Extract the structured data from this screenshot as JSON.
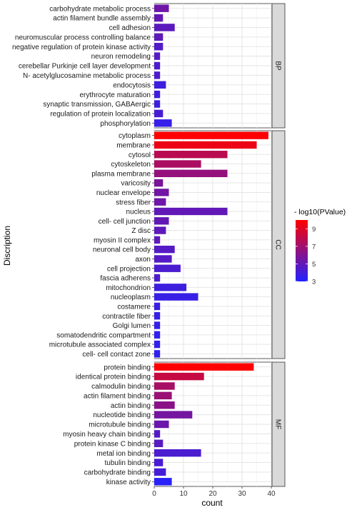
{
  "chart_data": {
    "type": "bar",
    "orientation": "horizontal",
    "xlabel": "count",
    "ylabel": "Discription",
    "xlim": [
      0,
      40
    ],
    "x_ticks": [
      0,
      10,
      20,
      30,
      40
    ],
    "grid": true,
    "legend": {
      "title": "- log10(PValue)",
      "position": "right",
      "ticks": [
        3,
        5,
        7,
        9
      ],
      "range": [
        3,
        10
      ],
      "colors": {
        "low": "#2222ff",
        "high": "#ff0000"
      }
    },
    "facets": [
      {
        "name": "BP",
        "categories": [
          "carbohydrate metabolic process",
          "actin filament bundle assembly",
          "cell adhesion",
          "neuromuscular process controlling balance",
          "negative regulation of protein kinase activity",
          "neuron remodeling",
          "cerebellar Purkinje cell layer development",
          "N- acetylglucosamine metabolic process",
          "endocytosis",
          "erythrocyte maturation",
          "synaptic transmission, GABAergic",
          "regulation of protein localization",
          "phosphorylation"
        ],
        "values": [
          5,
          3,
          7,
          3,
          3,
          2,
          2,
          2,
          4,
          2,
          2,
          3,
          6
        ],
        "color_values": [
          5.4,
          5.1,
          4.8,
          4.9,
          4.5,
          4.6,
          4.4,
          4.4,
          3.9,
          4.0,
          3.9,
          4.2,
          3.6
        ]
      },
      {
        "name": "CC",
        "categories": [
          "cytoplasm",
          "membrane",
          "cytosol",
          "cytoskeleton",
          "plasma membrane",
          "varicosity",
          "nuclear envelope",
          "stress fiber",
          "nucleus",
          "cell- cell junction",
          "Z disc",
          "myosin II complex",
          "neuronal cell body",
          "axon",
          "cell projection",
          "fascia adherens",
          "mitochondrion",
          "nucleoplasm",
          "costamere",
          "contractile fiber",
          "Golgi lumen",
          "somatodendritic compartment",
          "microtubule associated complex",
          "cell- cell contact zone"
        ],
        "values": [
          39,
          35,
          25,
          16,
          25,
          3,
          5,
          4,
          25,
          5,
          4,
          2,
          7,
          6,
          9,
          2,
          11,
          15,
          2,
          2,
          2,
          2,
          2,
          2
        ],
        "color_values": [
          10.0,
          9.4,
          7.8,
          7.3,
          6.6,
          5.8,
          5.5,
          5.4,
          5.0,
          5.1,
          4.9,
          4.9,
          4.6,
          4.6,
          4.3,
          4.4,
          3.9,
          3.7,
          3.8,
          3.7,
          3.6,
          3.5,
          3.5,
          3.4
        ]
      },
      {
        "name": "MF",
        "categories": [
          "protein binding",
          "identical protein binding",
          "calmodulin binding",
          "actin filament binding",
          "actin binding",
          "nucleotide binding",
          "microtubule binding",
          "myosin heavy chain binding",
          "protein kinase C binding",
          "metal ion binding",
          "tubulin binding",
          "carbohydrate binding",
          "kinase activity"
        ],
        "values": [
          34,
          17,
          7,
          6,
          7,
          13,
          5,
          2,
          3,
          16,
          3,
          4,
          6
        ],
        "color_values": [
          10.0,
          8.2,
          7.2,
          6.8,
          6.3,
          5.6,
          5.3,
          4.6,
          4.7,
          4.3,
          4.2,
          4.1,
          3.2
        ]
      }
    ]
  }
}
